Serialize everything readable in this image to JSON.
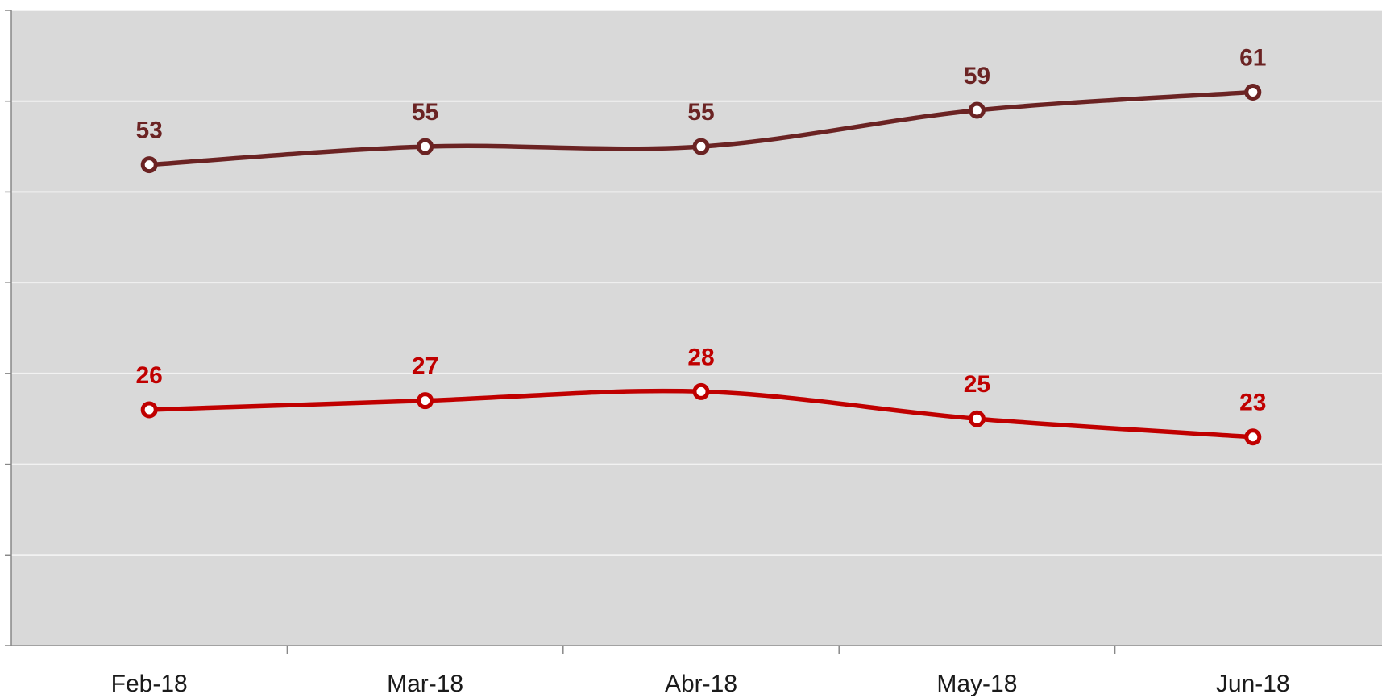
{
  "chart_data": {
    "type": "line",
    "categories": [
      "Feb-18",
      "Mar-18",
      "Abr-18",
      "May-18",
      "Jun-18"
    ],
    "series": [
      {
        "color": "#6b2323",
        "values": [
          53,
          55,
          55,
          59,
          61
        ]
      },
      {
        "color": "#c00000",
        "values": [
          26,
          27,
          28,
          25,
          23
        ]
      }
    ],
    "ylim": [
      0,
      70
    ],
    "yticks": [
      0,
      10,
      20,
      30,
      40,
      50,
      60,
      70
    ],
    "grid": true,
    "smooth": true
  }
}
